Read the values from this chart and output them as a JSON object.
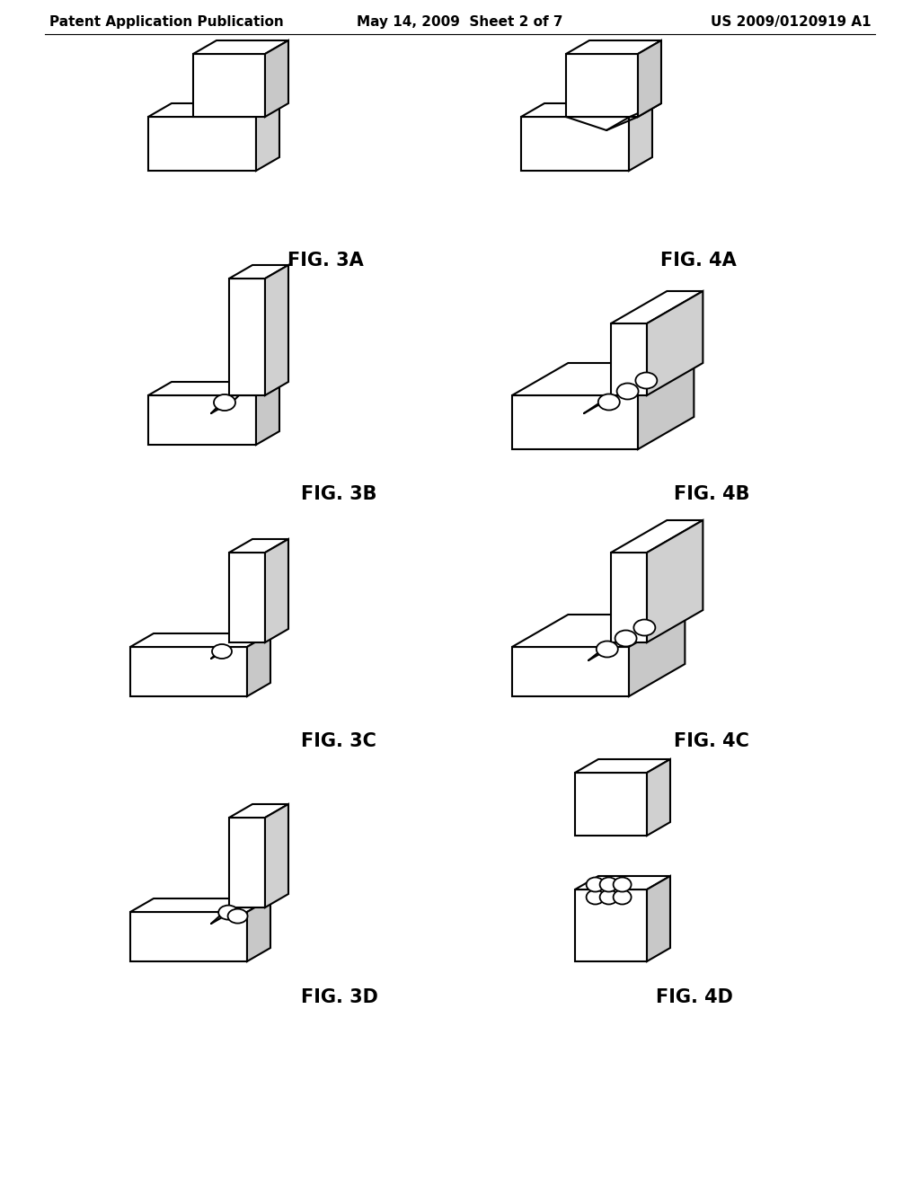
{
  "background_color": "#ffffff",
  "header_left": "Patent Application Publication",
  "header_center": "May 14, 2009  Sheet 2 of 7",
  "header_right": "US 2009/0120919 A1",
  "line_color": "#000000",
  "line_width": 1.5,
  "label_fontsize": 15,
  "header_fontsize": 11,
  "fig_labels": [
    "FIG. 3A",
    "FIG. 4A",
    "FIG. 3B",
    "FIG. 4B",
    "FIG. 3C",
    "FIG. 4C",
    "FIG. 3D",
    "FIG. 4D"
  ]
}
